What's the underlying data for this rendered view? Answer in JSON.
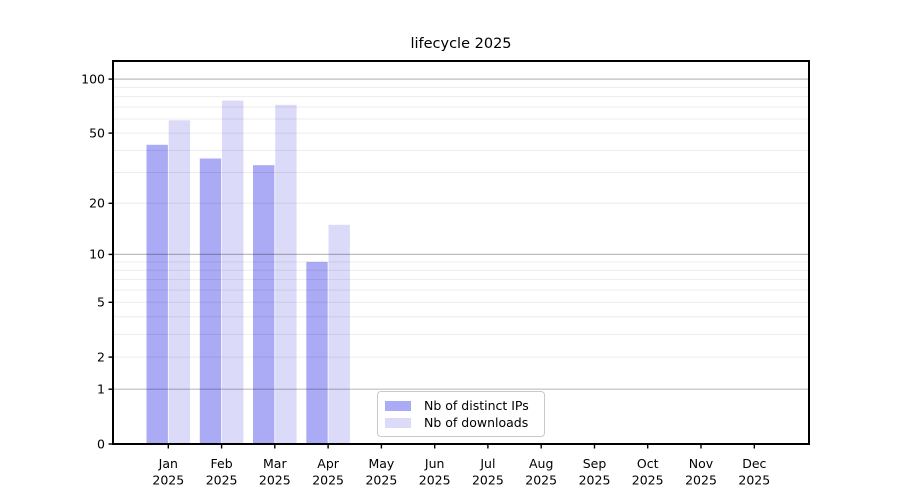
{
  "chart_data": {
    "type": "bar",
    "title": "lifecycle 2025",
    "categories": [
      {
        "month": "Jan",
        "year": "2025"
      },
      {
        "month": "Feb",
        "year": "2025"
      },
      {
        "month": "Mar",
        "year": "2025"
      },
      {
        "month": "Apr",
        "year": "2025"
      },
      {
        "month": "May",
        "year": "2025"
      },
      {
        "month": "Jun",
        "year": "2025"
      },
      {
        "month": "Jul",
        "year": "2025"
      },
      {
        "month": "Aug",
        "year": "2025"
      },
      {
        "month": "Sep",
        "year": "2025"
      },
      {
        "month": "Oct",
        "year": "2025"
      },
      {
        "month": "Nov",
        "year": "2025"
      },
      {
        "month": "Dec",
        "year": "2025"
      }
    ],
    "series": [
      {
        "name": "Nb of distinct IPs",
        "color": "#aaaaf5",
        "values": [
          43,
          36,
          33,
          9,
          0,
          0,
          0,
          0,
          0,
          0,
          0,
          0
        ]
      },
      {
        "name": "Nb of downloads",
        "color": "#dbdbf9",
        "values": [
          59,
          76,
          72,
          15,
          0,
          0,
          0,
          0,
          0,
          0,
          0,
          0
        ]
      }
    ],
    "yaxis": {
      "scale": "log10(1+x)",
      "ylim": [
        0,
        126
      ],
      "ticks": [
        0,
        1,
        2,
        5,
        10,
        20,
        50,
        100
      ],
      "major_gridlines": [
        1,
        10,
        100
      ],
      "minor_gridlines": [
        2,
        3,
        4,
        5,
        6,
        7,
        8,
        9,
        20,
        30,
        40,
        50,
        60,
        70,
        80,
        90
      ]
    },
    "grid": true,
    "legend_position": "inside lower center",
    "colors": {
      "axis": "#000000",
      "background": "#ffffff",
      "major_grid": "rgba(0,0,0,0.26)",
      "minor_grid": "rgba(0,0,0,0.075)"
    }
  }
}
